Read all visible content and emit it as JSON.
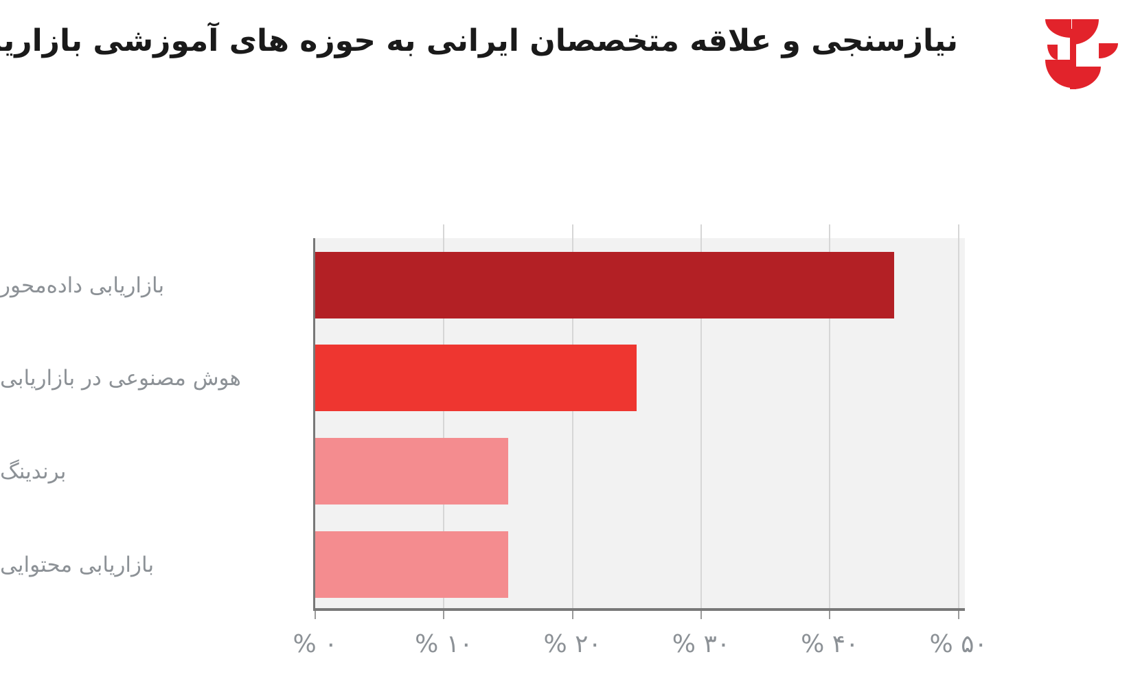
{
  "header": {
    "title": "نیازسنجی و علاقه متخصصان ایرانی به حوزه های آموزشی بازاریابی دیجیتال",
    "logo_color": "#e2232b"
  },
  "chart_data": {
    "type": "bar",
    "orientation": "horizontal",
    "title": "نیازسنجی و علاقه متخصصان ایرانی به حوزه های آموزشی بازاریابی دیجیتال",
    "categories": [
      "بازاریابی داده‌محور",
      "هوش مصنوعی در بازاریابی",
      "برندینگ",
      "بازاریابی محتوایی"
    ],
    "values": [
      45,
      25,
      15,
      15
    ],
    "unit": "percent",
    "x_tick_values": [
      0,
      10,
      20,
      30,
      40,
      50
    ],
    "x_tick_labels": [
      "% ۰",
      "% ۱۰",
      "% ۲۰",
      "% ۳۰",
      "% ۴۰",
      "% ۵۰"
    ],
    "xlim": [
      0,
      50.5
    ],
    "grid": true,
    "legend": false,
    "bar_colors": [
      "#b32025",
      "#ee3630",
      "#f48c8f",
      "#f48c8f"
    ],
    "plot_background": "#f2f2f2",
    "gridline_color": "#d6d6d6",
    "axis_color": "#787878",
    "label_color": "#8c9196"
  }
}
